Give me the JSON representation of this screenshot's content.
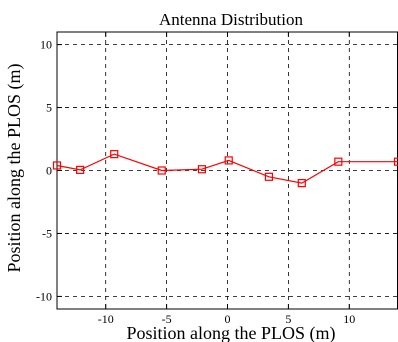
{
  "chart_data": {
    "type": "line",
    "title": "Antenna Distribution",
    "xlabel": "Position along the PLOS (m)",
    "ylabel": "Position along the PLOS (m)",
    "xlim": [
      -14,
      14
    ],
    "ylim": [
      -11,
      11
    ],
    "xticks": [
      -10,
      -5,
      0,
      5,
      10
    ],
    "yticks": [
      -10,
      -5,
      0,
      5,
      10
    ],
    "xtick_labels": [
      "-10",
      "-5",
      "0",
      "5",
      "10"
    ],
    "ytick_labels": [
      "-10",
      "-5",
      "0",
      "5",
      "10"
    ],
    "grid": true,
    "series": [
      {
        "color": "#ff0000",
        "marker": "square",
        "x": [
          -14.0,
          -12.1,
          -9.3,
          -5.4,
          -2.1,
          0.1,
          3.4,
          6.1,
          9.1,
          14.0
        ],
        "y": [
          0.4,
          0.05,
          1.3,
          0.0,
          0.1,
          0.8,
          -0.5,
          -1.0,
          0.7,
          0.7
        ]
      }
    ]
  }
}
